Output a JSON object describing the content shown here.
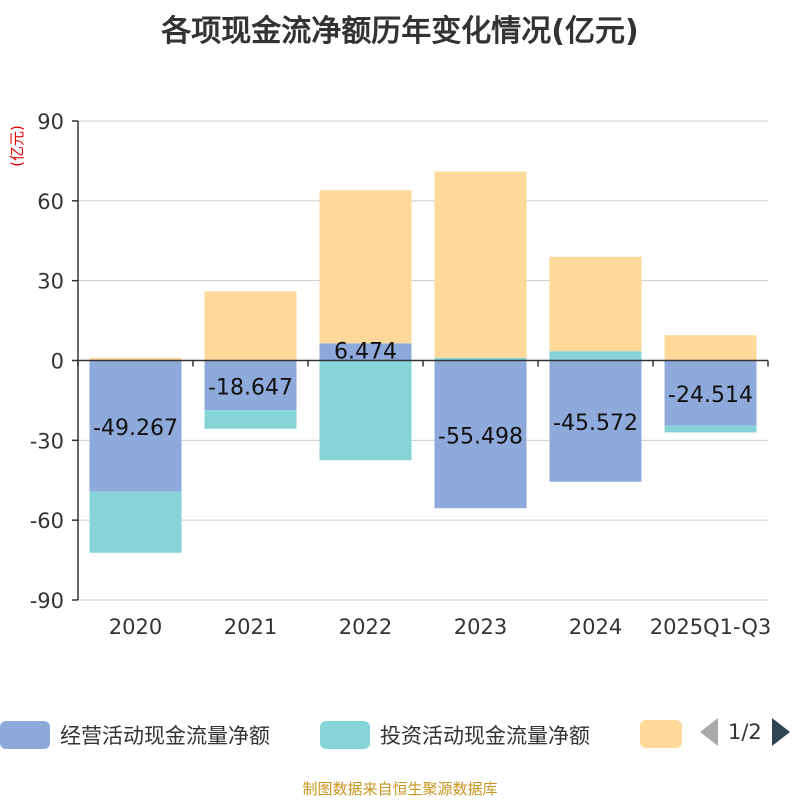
{
  "chart_data": {
    "type": "bar",
    "stacked": true,
    "title": "各项现金流净额历年变化情况(亿元)",
    "ylabel": "(亿元)",
    "categories": [
      "2020",
      "2021",
      "2022",
      "2023",
      "2024",
      "2025Q1-Q3"
    ],
    "ylim": [
      -90,
      90
    ],
    "yticks": [
      90,
      60,
      30,
      0,
      -30,
      -60,
      -90
    ],
    "grid": true,
    "series": [
      {
        "name": "经营活动现金流量净额",
        "color": "#8eaadb",
        "values": [
          -49.267,
          -18.647,
          6.474,
          -55.498,
          -45.572,
          -24.514
        ],
        "labels": [
          "-49.267",
          "-18.647",
          "6.474",
          "-55.498",
          "-45.572",
          "-24.514"
        ]
      },
      {
        "name": "投资活动现金流量净额",
        "color": "#86d4d8",
        "values": [
          -23,
          -7,
          -37.5,
          1,
          3.5,
          -2.5
        ]
      },
      {
        "name": "",
        "color": "#ffd99a",
        "values": [
          1,
          26,
          57.5,
          70,
          35.5,
          9.5
        ]
      }
    ]
  },
  "legend": {
    "items": [
      "经营活动现金流量净额",
      "投资活动现金流量净额",
      ""
    ],
    "page": "1/2"
  },
  "footer": "制图数据来自恒生聚源数据库"
}
